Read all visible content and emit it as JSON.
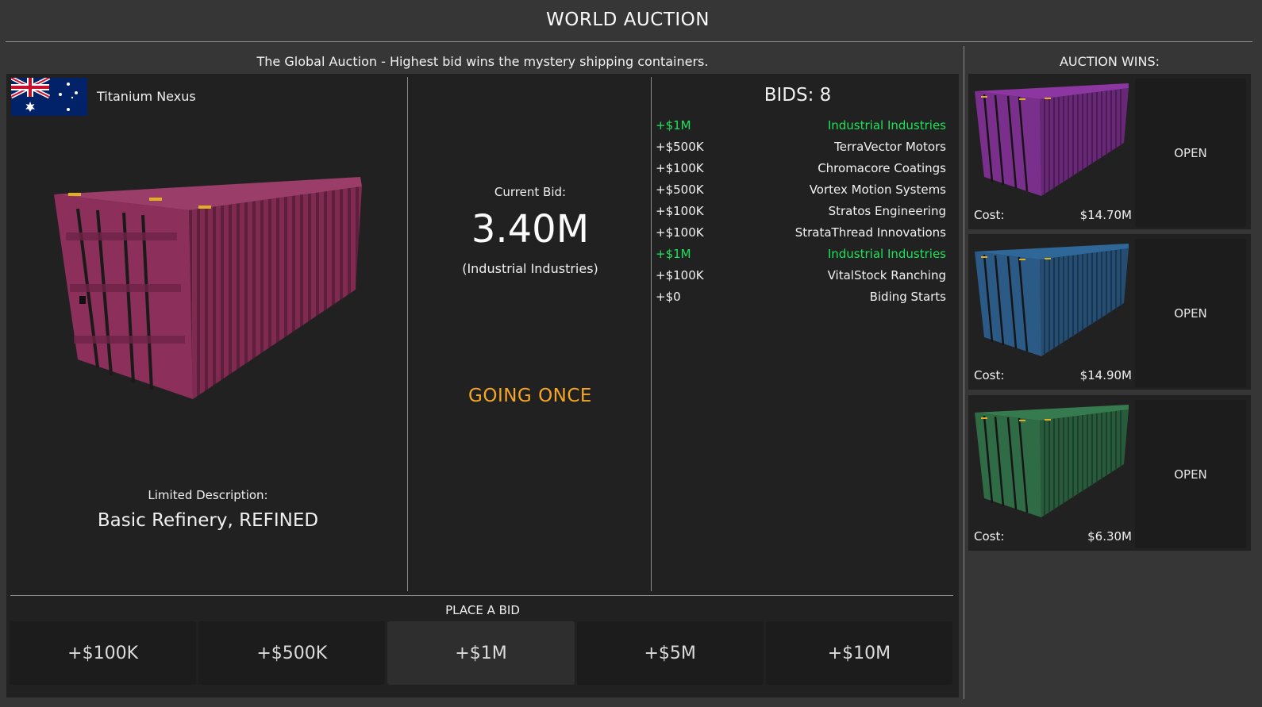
{
  "header": {
    "title": "WORLD AUCTION",
    "subtitle": "The Global Auction - Highest bid wins the mystery shipping containers."
  },
  "lot": {
    "flag_icon": "australia-flag-icon",
    "seller": "Titanium Nexus",
    "container_color": "#8c2f5a",
    "description_label": "Limited Description:",
    "description_value": "Basic Refinery, REFINED"
  },
  "current_bid": {
    "label": "Current Bid:",
    "value": "3.40M",
    "bidder": "(Industrial Industries)",
    "status": "GOING ONCE",
    "status_color": "#f5a623"
  },
  "bids": {
    "label": "BIDS:",
    "count": "8",
    "highlight_color": "#1ee35a",
    "rows": [
      {
        "amount": "+$1M",
        "bidder": "Industrial Industries",
        "highlight": true
      },
      {
        "amount": "+$500K",
        "bidder": "TerraVector Motors",
        "highlight": false
      },
      {
        "amount": "+$100K",
        "bidder": "Chromacore Coatings",
        "highlight": false
      },
      {
        "amount": "+$500K",
        "bidder": "Vortex Motion Systems",
        "highlight": false
      },
      {
        "amount": "+$100K",
        "bidder": "Stratos Engineering",
        "highlight": false
      },
      {
        "amount": "+$100K",
        "bidder": "StrataThread Innovations",
        "highlight": false
      },
      {
        "amount": "+$1M",
        "bidder": "Industrial Industries",
        "highlight": true
      },
      {
        "amount": "+$100K",
        "bidder": "VitalStock Ranching",
        "highlight": false
      },
      {
        "amount": "+$0",
        "bidder": "Biding Starts",
        "highlight": false
      }
    ]
  },
  "place_bid": {
    "label": "PLACE A BID",
    "buttons": [
      "+$100K",
      "+$500K",
      "+$1M",
      "+$5M",
      "+$10M"
    ],
    "active_index": 2
  },
  "wins": {
    "title": "AUCTION WINS:",
    "items": [
      {
        "cost_label": "Cost:",
        "cost": "$14.70M",
        "open_label": "OPEN",
        "color": "#7a2f8c"
      },
      {
        "cost_label": "Cost:",
        "cost": "$14.90M",
        "open_label": "OPEN",
        "color": "#2a5a85"
      },
      {
        "cost_label": "Cost:",
        "cost": "$6.30M",
        "open_label": "OPEN",
        "color": "#2f6b45"
      }
    ]
  }
}
